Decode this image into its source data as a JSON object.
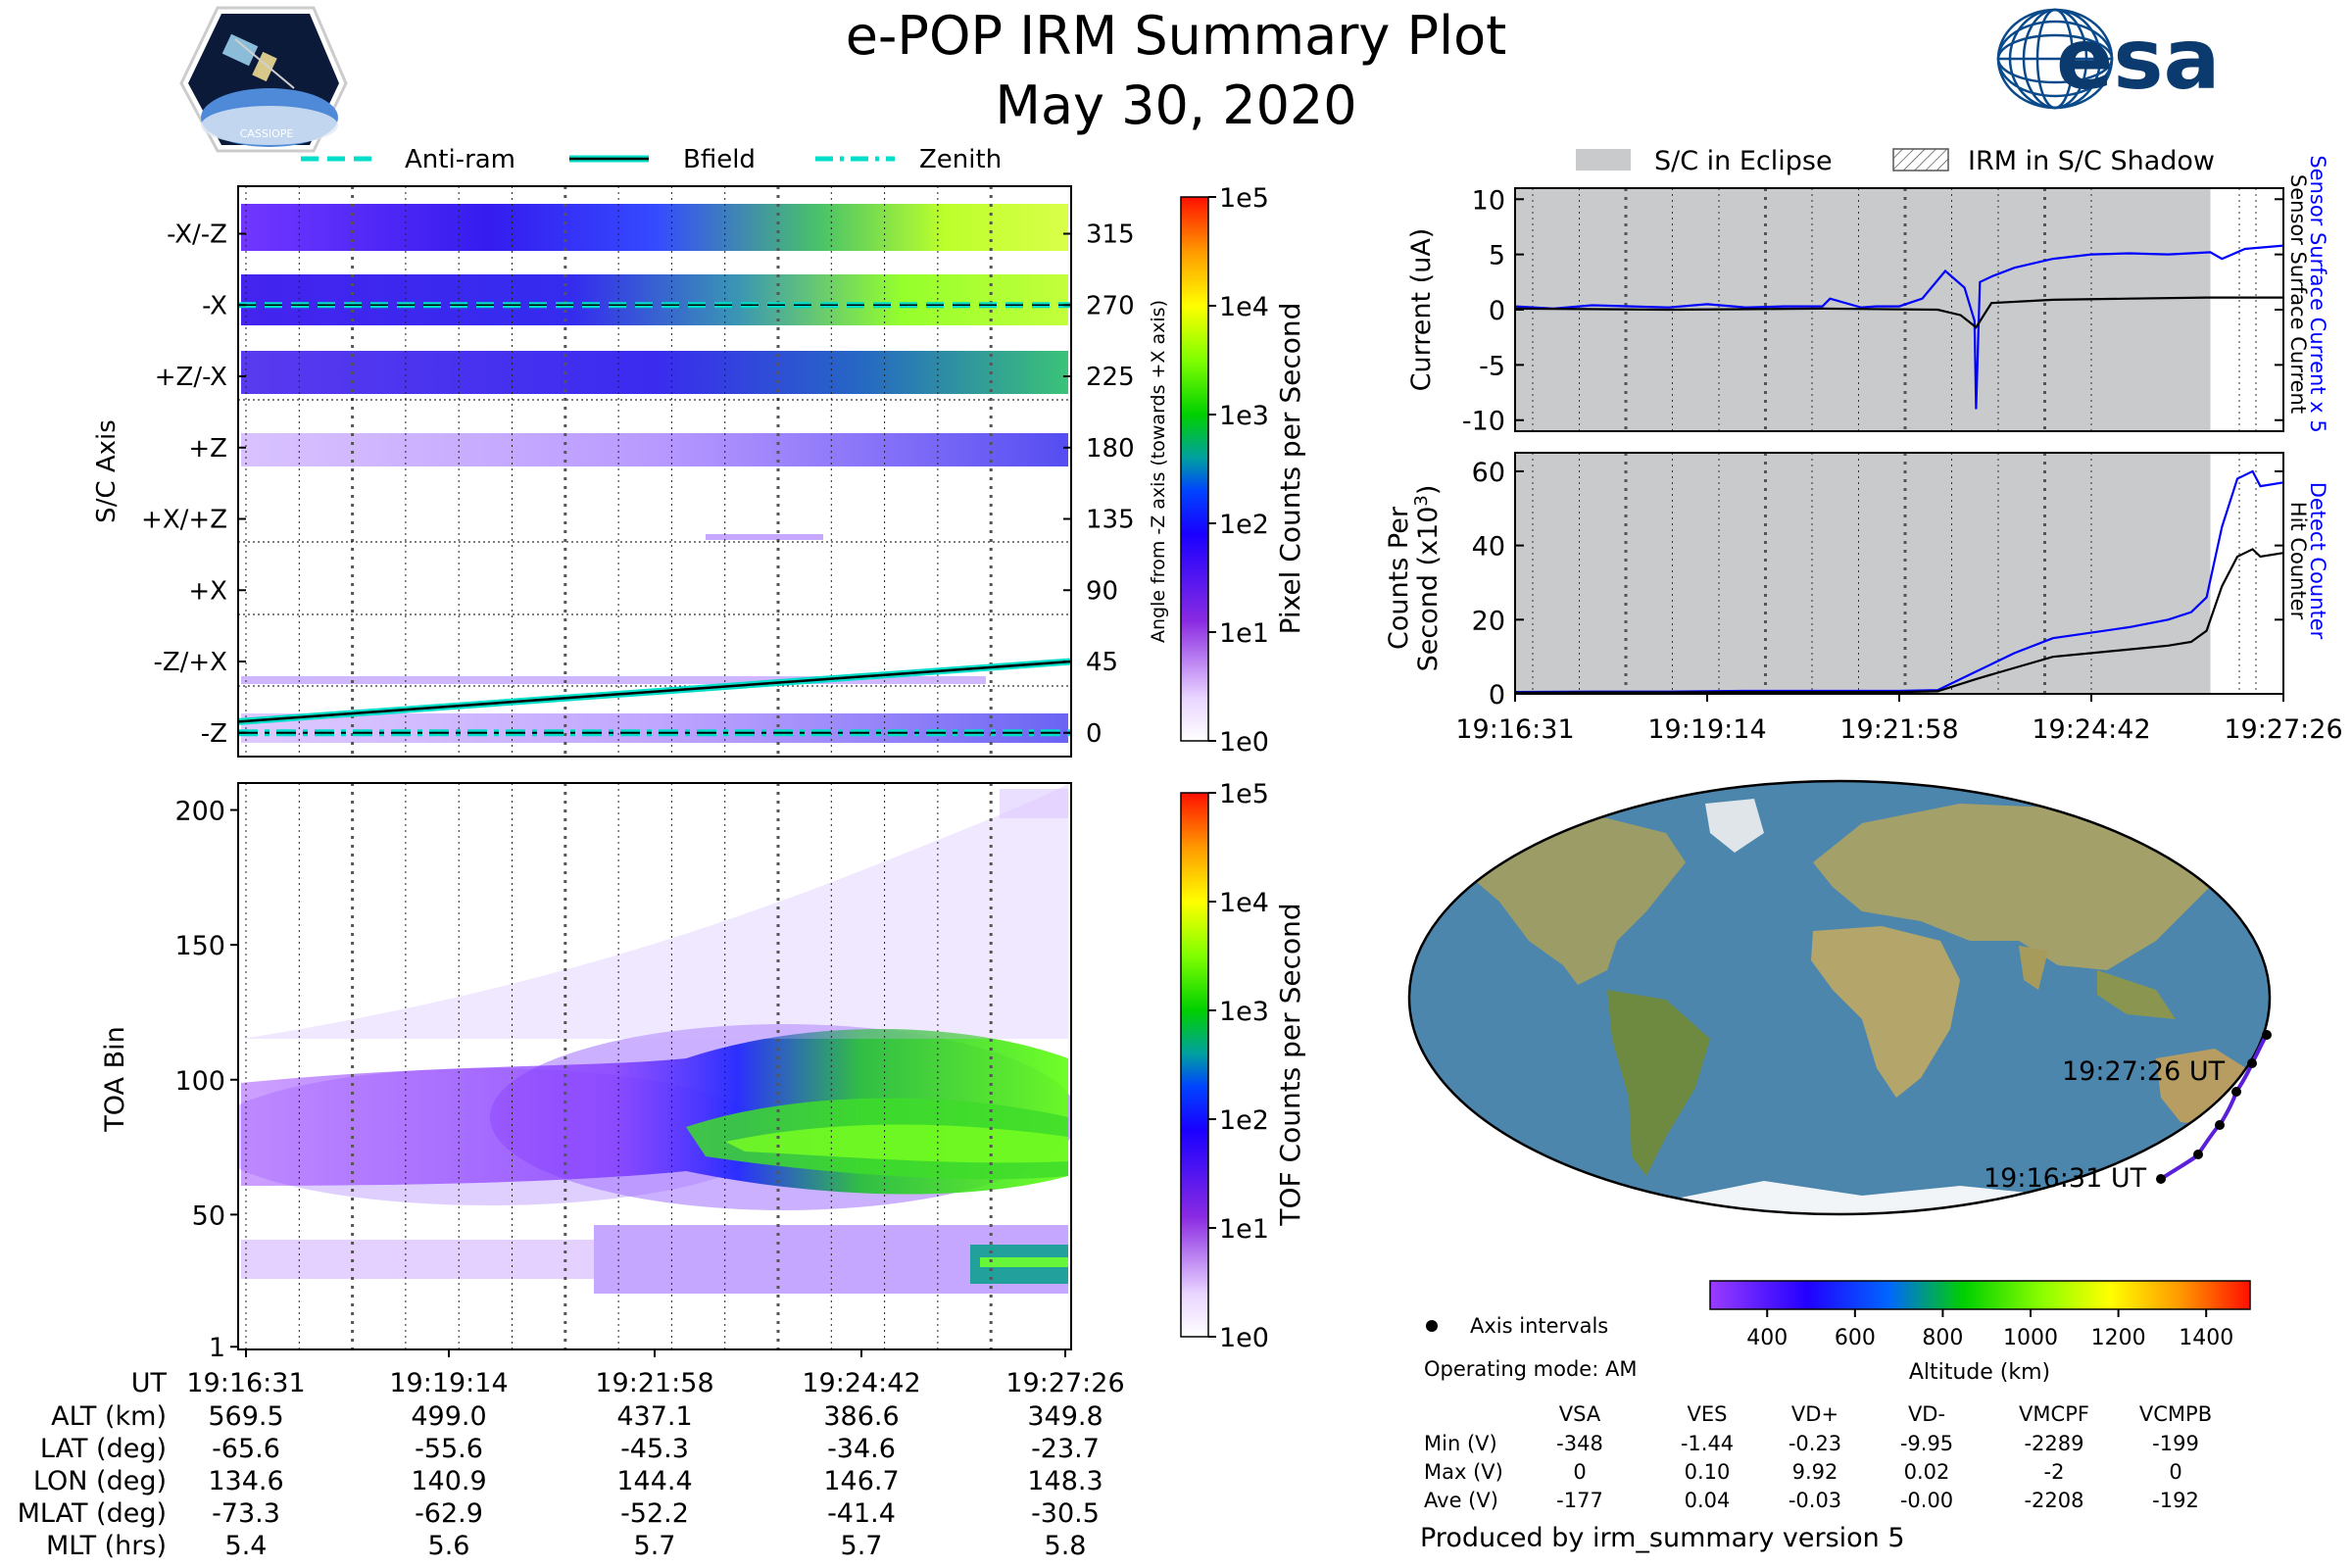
{
  "header": {
    "title": "e-POP IRM Summary Plot",
    "date": "May 30, 2020",
    "left_logo_text": "CASSIOPE",
    "right_logo_text": "esa"
  },
  "colors": {
    "eclipse": "#c8cacb",
    "blue": "#0000ff",
    "cyan": "#00ddc8",
    "orbit": "#5a1fd8",
    "ocean": "#4d86ad",
    "land": "#a3a46b",
    "ice": "#f2f5f8"
  },
  "chart_data": [
    {
      "id": "pixel_angle",
      "type": "heatmap",
      "title": "",
      "ylabel": "S/C Axis",
      "ylabel_right": "Angle from -Z axis (towards +X axis)",
      "axis_labels": [
        "-X/-Z",
        "-X",
        "+Z/-X",
        "+Z",
        "+X/+Z",
        "+X",
        "-Z/+X",
        "-Z"
      ],
      "angle_ticks": [
        315,
        270,
        225,
        180,
        135,
        90,
        45,
        0
      ],
      "ylim": [
        -15,
        345
      ],
      "legend": [
        {
          "label": "Anti-ram",
          "style": "dashed"
        },
        {
          "label": "Bfield",
          "style": "solid"
        },
        {
          "label": "Zenith",
          "style": "dashdot"
        }
      ],
      "lines": {
        "anti_ram_angle": 270,
        "zenith_angle": 0,
        "bfield_start_angle": 7,
        "bfield_end_angle": 45
      },
      "colorbar": {
        "label": "Pixel Counts per Second",
        "ticks": [
          "1e5",
          "1e4",
          "1e3",
          "1e2",
          "1e1",
          "1e0"
        ]
      }
    },
    {
      "id": "tof",
      "type": "heatmap",
      "ylabel": "TOA Bin",
      "yticks": [
        200,
        150,
        100,
        50,
        1
      ],
      "ylim": [
        0,
        210
      ],
      "colorbar": {
        "label": "TOF Counts per Second",
        "ticks": [
          "1e5",
          "1e4",
          "1e3",
          "1e2",
          "1e1",
          "1e0"
        ]
      }
    },
    {
      "id": "current",
      "type": "line",
      "ylabel": "Current (uA)",
      "yticks": [
        10,
        5,
        0,
        -5,
        -10
      ],
      "ylim": [
        -11,
        11
      ],
      "eclipse_end_fraction": 0.905,
      "right_labels": [
        "Sensor Surface Current x 5",
        "Sensor Surface Current"
      ],
      "series": [
        {
          "name": "Sensor Surface Current x 5",
          "color": "blue",
          "x": [
            0,
            0.05,
            0.1,
            0.2,
            0.25,
            0.3,
            0.35,
            0.4,
            0.41,
            0.45,
            0.47,
            0.5,
            0.53,
            0.56,
            0.585,
            0.598,
            0.6,
            0.605,
            0.62,
            0.65,
            0.7,
            0.75,
            0.8,
            0.85,
            0.905,
            0.92,
            0.95,
            1.0
          ],
          "values": [
            0.3,
            0.1,
            0.4,
            0.2,
            0.5,
            0.2,
            0.3,
            0.3,
            1.0,
            0.2,
            0.3,
            0.3,
            1.0,
            3.5,
            2.0,
            -1.0,
            -9.0,
            2.5,
            3.0,
            3.8,
            4.6,
            5.0,
            5.1,
            5.0,
            5.2,
            4.6,
            5.5,
            5.8
          ]
        },
        {
          "name": "Sensor Surface Current",
          "color": "black",
          "x": [
            0,
            0.2,
            0.4,
            0.55,
            0.58,
            0.6,
            0.62,
            0.7,
            0.8,
            0.9,
            1.0
          ],
          "values": [
            0.1,
            0.0,
            0.1,
            0.0,
            -0.5,
            -1.6,
            0.6,
            0.9,
            1.0,
            1.1,
            1.1
          ]
        }
      ]
    },
    {
      "id": "counts",
      "type": "line",
      "ylabel": "Counts Per Second (x10^3)",
      "yticks": [
        60,
        40,
        20,
        0
      ],
      "ylim": [
        0,
        65
      ],
      "eclipse_end_fraction": 0.905,
      "right_labels": [
        "Detect Counter",
        "Hit Counter"
      ],
      "xtick_labels": [
        "19:16:31",
        "19:19:14",
        "19:21:58",
        "19:24:42",
        "19:27:26"
      ],
      "series": [
        {
          "name": "Detect Counter",
          "color": "blue",
          "x": [
            0,
            0.1,
            0.2,
            0.3,
            0.4,
            0.5,
            0.55,
            0.6,
            0.65,
            0.7,
            0.8,
            0.85,
            0.88,
            0.9,
            0.92,
            0.94,
            0.96,
            0.97,
            1.0
          ],
          "values": [
            0.5,
            0.6,
            0.6,
            0.8,
            0.8,
            0.8,
            1.0,
            6,
            11,
            15,
            18,
            20,
            22,
            26,
            45,
            58,
            60,
            56,
            57
          ]
        },
        {
          "name": "Hit Counter",
          "color": "black",
          "x": [
            0,
            0.1,
            0.2,
            0.3,
            0.4,
            0.5,
            0.55,
            0.6,
            0.65,
            0.7,
            0.8,
            0.85,
            0.88,
            0.9,
            0.92,
            0.94,
            0.96,
            0.97,
            1.0
          ],
          "values": [
            0.3,
            0.4,
            0.4,
            0.5,
            0.5,
            0.5,
            0.7,
            4,
            7,
            10,
            12,
            13,
            14,
            17,
            29,
            37,
            39,
            37,
            38
          ]
        }
      ]
    }
  ],
  "eclipse_legend": {
    "eclipse": "S/C in Eclipse",
    "shadow": "IRM in S/C Shadow"
  },
  "map": {
    "start_label": "19:16:31 UT",
    "end_label": "19:27:26 UT",
    "altitude_colorbar": {
      "label": "Altitude (km)",
      "ticks": [
        400,
        600,
        800,
        1000,
        1200,
        1400
      ]
    },
    "axis_intervals_label": "Axis intervals",
    "operating_mode": "Operating mode: AM"
  },
  "voltages": {
    "columns": [
      "VSA",
      "VES",
      "VD+",
      "VD-",
      "VMCPF",
      "VCMPB"
    ],
    "rows": [
      {
        "label": "Min (V)",
        "values": [
          "-348",
          "-1.44",
          "-0.23",
          "-9.95",
          "-2289",
          "-199"
        ]
      },
      {
        "label": "Max (V)",
        "values": [
          "0",
          "0.10",
          "9.92",
          "0.02",
          "-2",
          "0"
        ]
      },
      {
        "label": "Ave (V)",
        "values": [
          "-177",
          "0.04",
          "-0.03",
          "-0.00",
          "-2208",
          "-192"
        ]
      }
    ]
  },
  "ephemeris": {
    "header_label": "UT",
    "times": [
      "19:16:31",
      "19:19:14",
      "19:21:58",
      "19:24:42",
      "19:27:26"
    ],
    "rows": [
      {
        "label": "ALT (km)",
        "values": [
          "569.5",
          "499.0",
          "437.1",
          "386.6",
          "349.8"
        ]
      },
      {
        "label": "LAT (deg)",
        "values": [
          "-65.6",
          "-55.6",
          "-45.3",
          "-34.6",
          "-23.7"
        ]
      },
      {
        "label": "LON (deg)",
        "values": [
          "134.6",
          "140.9",
          "144.4",
          "146.7",
          "148.3"
        ]
      },
      {
        "label": "MLAT (deg)",
        "values": [
          "-73.3",
          "-62.9",
          "-52.2",
          "-41.4",
          "-30.5"
        ]
      },
      {
        "label": "MLT (hrs)",
        "values": [
          "5.4",
          "5.6",
          "5.7",
          "5.7",
          "5.8"
        ]
      }
    ]
  },
  "footer": "Produced by irm_summary version 5"
}
